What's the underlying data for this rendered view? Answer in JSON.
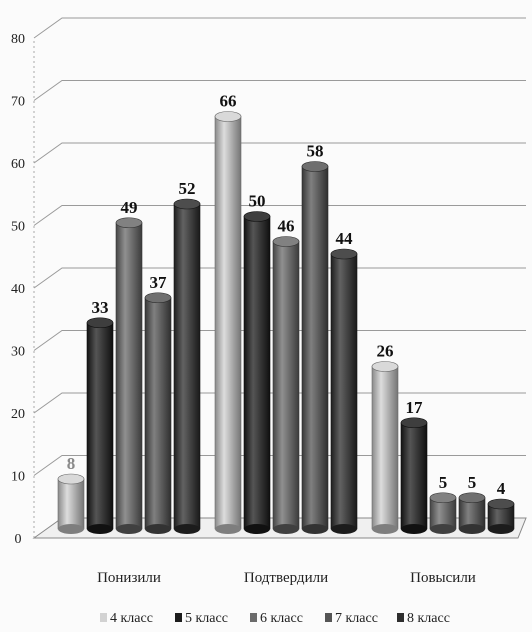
{
  "chart_data": {
    "type": "bar",
    "categories": [
      "Понизили",
      "Подтвердили",
      "Повысили"
    ],
    "series": [
      {
        "name": "4 класс",
        "color": "#d2d2d2",
        "values": [
          8,
          66,
          26
        ]
      },
      {
        "name": "5 класс",
        "color": "#1c1c1c",
        "values": [
          33,
          50,
          17
        ]
      },
      {
        "name": "6 класс",
        "color": "#6b6b6b",
        "values": [
          49,
          46,
          5
        ]
      },
      {
        "name": "7 класс",
        "color": "#555555",
        "values": [
          37,
          58,
          5
        ]
      },
      {
        "name": "8 класс",
        "color": "#2e2e2e",
        "values": [
          52,
          44,
          4
        ]
      }
    ],
    "yticks": [
      "0",
      "10",
      "20",
      "30",
      "40",
      "50",
      "60",
      "70",
      "80"
    ],
    "ylim": [
      0,
      80
    ],
    "legend_position": "bottom",
    "grid": true
  }
}
